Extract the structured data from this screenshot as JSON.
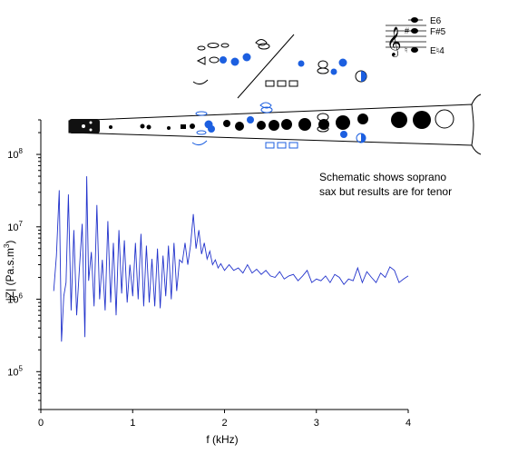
{
  "chart_data": {
    "type": "line",
    "title": "",
    "xlabel": "f (kHz)",
    "ylabel_main": "|Z| (Pa.s.m",
    "ylabel_sup": "3",
    "ylabel_close": ")",
    "xlim": [
      0,
      4
    ],
    "ylim": [
      30000,
      300000000
    ],
    "yscale": "log",
    "x_ticks": [
      0,
      1,
      2,
      3,
      4
    ],
    "x_tick_labels": [
      "0",
      "1",
      "2",
      "3",
      "4"
    ],
    "y_ticks": [
      {
        "value": 100000,
        "base": "10",
        "exp": "5"
      },
      {
        "value": 1000000,
        "base": "10",
        "exp": "6"
      },
      {
        "value": 10000000,
        "base": "10",
        "exp": "7"
      },
      {
        "value": 100000000,
        "base": "10",
        "exp": "8"
      }
    ],
    "grid": false,
    "line_color": "#2233cc",
    "series": [
      {
        "name": "",
        "x": [
          0.14,
          0.17,
          0.2,
          0.225,
          0.25,
          0.275,
          0.3,
          0.33,
          0.36,
          0.39,
          0.42,
          0.45,
          0.48,
          0.5,
          0.52,
          0.55,
          0.58,
          0.61,
          0.64,
          0.67,
          0.7,
          0.73,
          0.76,
          0.79,
          0.82,
          0.85,
          0.88,
          0.91,
          0.94,
          0.97,
          1.0,
          1.03,
          1.06,
          1.09,
          1.12,
          1.15,
          1.18,
          1.21,
          1.24,
          1.27,
          1.3,
          1.33,
          1.36,
          1.39,
          1.42,
          1.45,
          1.48,
          1.51,
          1.54,
          1.57,
          1.6,
          1.63,
          1.66,
          1.69,
          1.72,
          1.75,
          1.78,
          1.81,
          1.84,
          1.87,
          1.9,
          1.93,
          1.96,
          2.0,
          2.05,
          2.1,
          2.15,
          2.2,
          2.25,
          2.3,
          2.35,
          2.4,
          2.45,
          2.5,
          2.55,
          2.6,
          2.65,
          2.7,
          2.75,
          2.8,
          2.85,
          2.9,
          2.95,
          3.0,
          3.05,
          3.1,
          3.15,
          3.2,
          3.25,
          3.3,
          3.35,
          3.4,
          3.45,
          3.5,
          3.55,
          3.6,
          3.65,
          3.7,
          3.75,
          3.8,
          3.85,
          3.9,
          3.95,
          4.0
        ],
        "y": [
          1300000,
          4000000,
          32000000,
          260000,
          1100000,
          1700000,
          28000000,
          700000,
          9000000,
          600000,
          2600000,
          11000000,
          300000,
          50000000,
          1800000,
          4500000,
          800000,
          20000000,
          1000000,
          3500000,
          700000,
          12000000,
          900000,
          6000000,
          600000,
          9000000,
          1200000,
          6500000,
          900000,
          3000000,
          1100000,
          6000000,
          1000000,
          8000000,
          800000,
          5500000,
          900000,
          3600000,
          800000,
          5000000,
          750000,
          4000000,
          1100000,
          5500000,
          1000000,
          6000000,
          1300000,
          3500000,
          3200000,
          6000000,
          3000000,
          5500000,
          15000000,
          5000000,
          9000000,
          4200000,
          6000000,
          3600000,
          4600000,
          3000000,
          3500000,
          2700000,
          3100000,
          2500000,
          3000000,
          2500000,
          2700000,
          2300000,
          3000000,
          2300000,
          2600000,
          2200000,
          2500000,
          2100000,
          2000000,
          2400000,
          1900000,
          2100000,
          2200000,
          1800000,
          2100000,
          2500000,
          1700000,
          1900000,
          1800000,
          2100000,
          1700000,
          2200000,
          2000000,
          1600000,
          1900000,
          1800000,
          2700000,
          1700000,
          2400000,
          2000000,
          1700000,
          2300000,
          2000000,
          2800000,
          2500000,
          1700000,
          1900000,
          2100000
        ]
      }
    ]
  },
  "annotation": {
    "line1": "Schematic shows soprano",
    "line2": "sax but results are for tenor"
  },
  "notes": {
    "high": "E6",
    "mid": "F#5",
    "low": "E♮4"
  }
}
